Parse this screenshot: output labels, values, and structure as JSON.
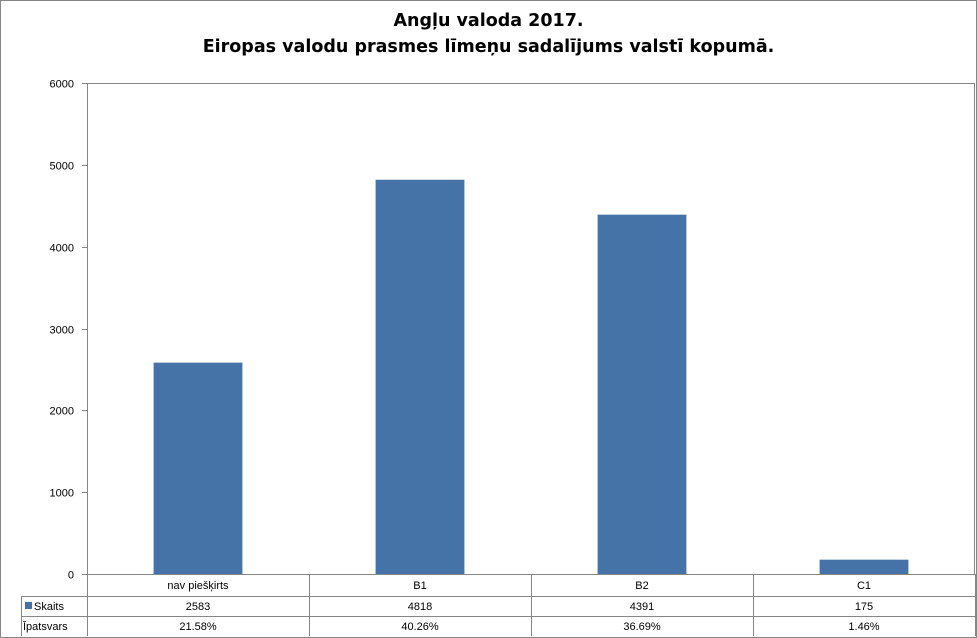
{
  "chart_data": {
    "type": "bar",
    "title": "Angļu valoda 2017.",
    "subtitle": "Eiropas valodu prasmes līmeņu sadalījums valstī kopumā.",
    "categories": [
      "nav piešķirts",
      "B1",
      "B2",
      "C1"
    ],
    "series": [
      {
        "name": "Skaits",
        "values": [
          2583,
          4818,
          4391,
          175
        ]
      }
    ],
    "data_table": {
      "rows": [
        {
          "label": "Skaits",
          "values": [
            "2583",
            "4818",
            "4391",
            "175"
          ]
        },
        {
          "label": "Īpatsvars",
          "values": [
            "21.58%",
            "40.26%",
            "36.69%",
            "1.46%"
          ]
        }
      ]
    },
    "ylim": [
      0,
      6000
    ],
    "yticks": [
      "0",
      "1000",
      "2000",
      "3000",
      "4000",
      "5000",
      "6000"
    ],
    "grid": false,
    "legend": "data-table key",
    "bar_color": "#4572A7"
  }
}
